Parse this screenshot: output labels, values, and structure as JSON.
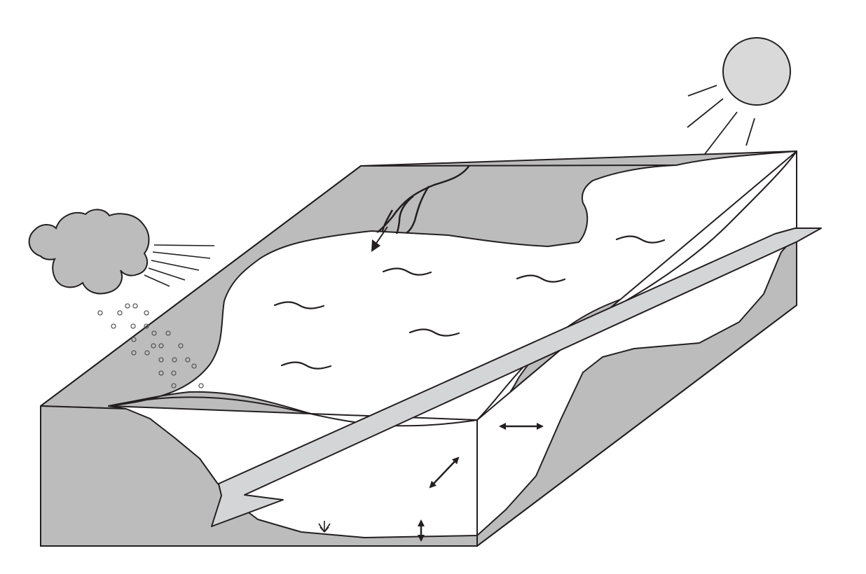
{
  "diagram": {
    "subject": "lake-block-diagram",
    "colors": {
      "background": "#ffffff",
      "land": "#bcbcbd",
      "water": "#ffffff",
      "outline": "#231f20",
      "sun": "#d9d9da",
      "flow_arrow": "#d4d5d6",
      "rain": "#8a8a8a"
    },
    "icons": [
      "cloud-icon",
      "sun-icon",
      "rain-icon",
      "inflow-stream-icon",
      "plant-icon"
    ],
    "elements": [
      "cloud",
      "rain",
      "sun",
      "inflow-streams",
      "lake-surface",
      "water-waves",
      "through-flow-arrow",
      "horizontal-mixing-arrow",
      "diagonal-mixing-arrow",
      "vertical-mixing-arrow",
      "bottom-plant"
    ],
    "text_labels": []
  }
}
